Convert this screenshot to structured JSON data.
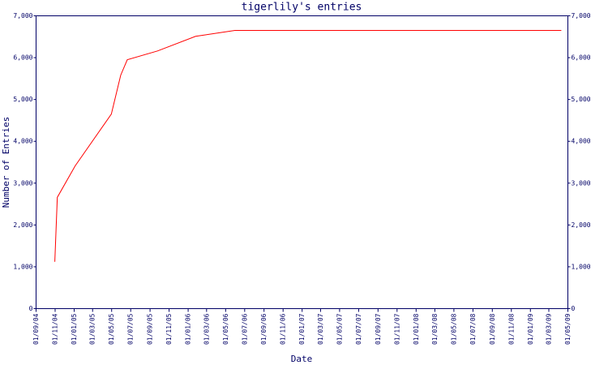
{
  "chart_data": {
    "type": "line",
    "title": "tigerlily's entries",
    "x_label": "Date",
    "y_label": "Number of Entries",
    "x": [
      "2004-10-31",
      "2004-11-08",
      "2005-01-04",
      "2005-04-30",
      "2005-05-30",
      "2005-06-20",
      "2005-09-25",
      "2006-01-25",
      "2006-05-31",
      "2009-04-10"
    ],
    "series": [
      {
        "name": "entries",
        "color": "#ff0000",
        "values": [
          1120,
          2660,
          3410,
          4650,
          5580,
          5950,
          6160,
          6510,
          6650,
          6650
        ]
      }
    ],
    "xlim": [
      "2004-09-01",
      "2009-05-01"
    ],
    "xticks": [
      {
        "value": "2004-09-01",
        "label": "01/09/04"
      },
      {
        "value": "2004-11-01",
        "label": "01/11/04"
      },
      {
        "value": "2005-01-01",
        "label": "01/01/05"
      },
      {
        "value": "2005-03-01",
        "label": "01/03/05"
      },
      {
        "value": "2005-05-01",
        "label": "01/05/05"
      },
      {
        "value": "2005-07-01",
        "label": "01/07/05"
      },
      {
        "value": "2005-09-01",
        "label": "01/09/05"
      },
      {
        "value": "2005-11-01",
        "label": "01/11/05"
      },
      {
        "value": "2006-01-01",
        "label": "01/01/06"
      },
      {
        "value": "2006-03-01",
        "label": "01/03/06"
      },
      {
        "value": "2006-05-01",
        "label": "01/05/06"
      },
      {
        "value": "2006-07-01",
        "label": "01/07/06"
      },
      {
        "value": "2006-09-01",
        "label": "01/09/06"
      },
      {
        "value": "2006-11-01",
        "label": "01/11/06"
      },
      {
        "value": "2007-01-01",
        "label": "01/01/07"
      },
      {
        "value": "2007-03-01",
        "label": "01/03/07"
      },
      {
        "value": "2007-05-01",
        "label": "01/05/07"
      },
      {
        "value": "2007-07-01",
        "label": "01/07/07"
      },
      {
        "value": "2007-09-01",
        "label": "01/09/07"
      },
      {
        "value": "2007-11-01",
        "label": "01/11/07"
      },
      {
        "value": "2008-01-01",
        "label": "01/01/08"
      },
      {
        "value": "2008-03-01",
        "label": "01/03/08"
      },
      {
        "value": "2008-05-01",
        "label": "01/05/08"
      },
      {
        "value": "2008-07-01",
        "label": "01/07/08"
      },
      {
        "value": "2008-09-01",
        "label": "01/09/08"
      },
      {
        "value": "2008-11-01",
        "label": "01/11/08"
      },
      {
        "value": "2009-01-01",
        "label": "01/01/09"
      },
      {
        "value": "2009-03-01",
        "label": "01/03/09"
      },
      {
        "value": "2009-05-01",
        "label": "01/05/09"
      }
    ],
    "ylim": [
      0,
      7000
    ],
    "yticks": [
      0,
      {
        "value": 1000,
        "label": "1,000"
      },
      {
        "value": 2000,
        "label": "2,000"
      },
      {
        "value": 3000,
        "label": "3,000"
      },
      {
        "value": 4000,
        "label": "4,000"
      },
      {
        "value": 5000,
        "label": "5,000"
      },
      {
        "value": 6000,
        "label": "6,000"
      },
      {
        "value": 7000,
        "label": "7,000"
      }
    ],
    "right_axis": true,
    "grid": false
  }
}
